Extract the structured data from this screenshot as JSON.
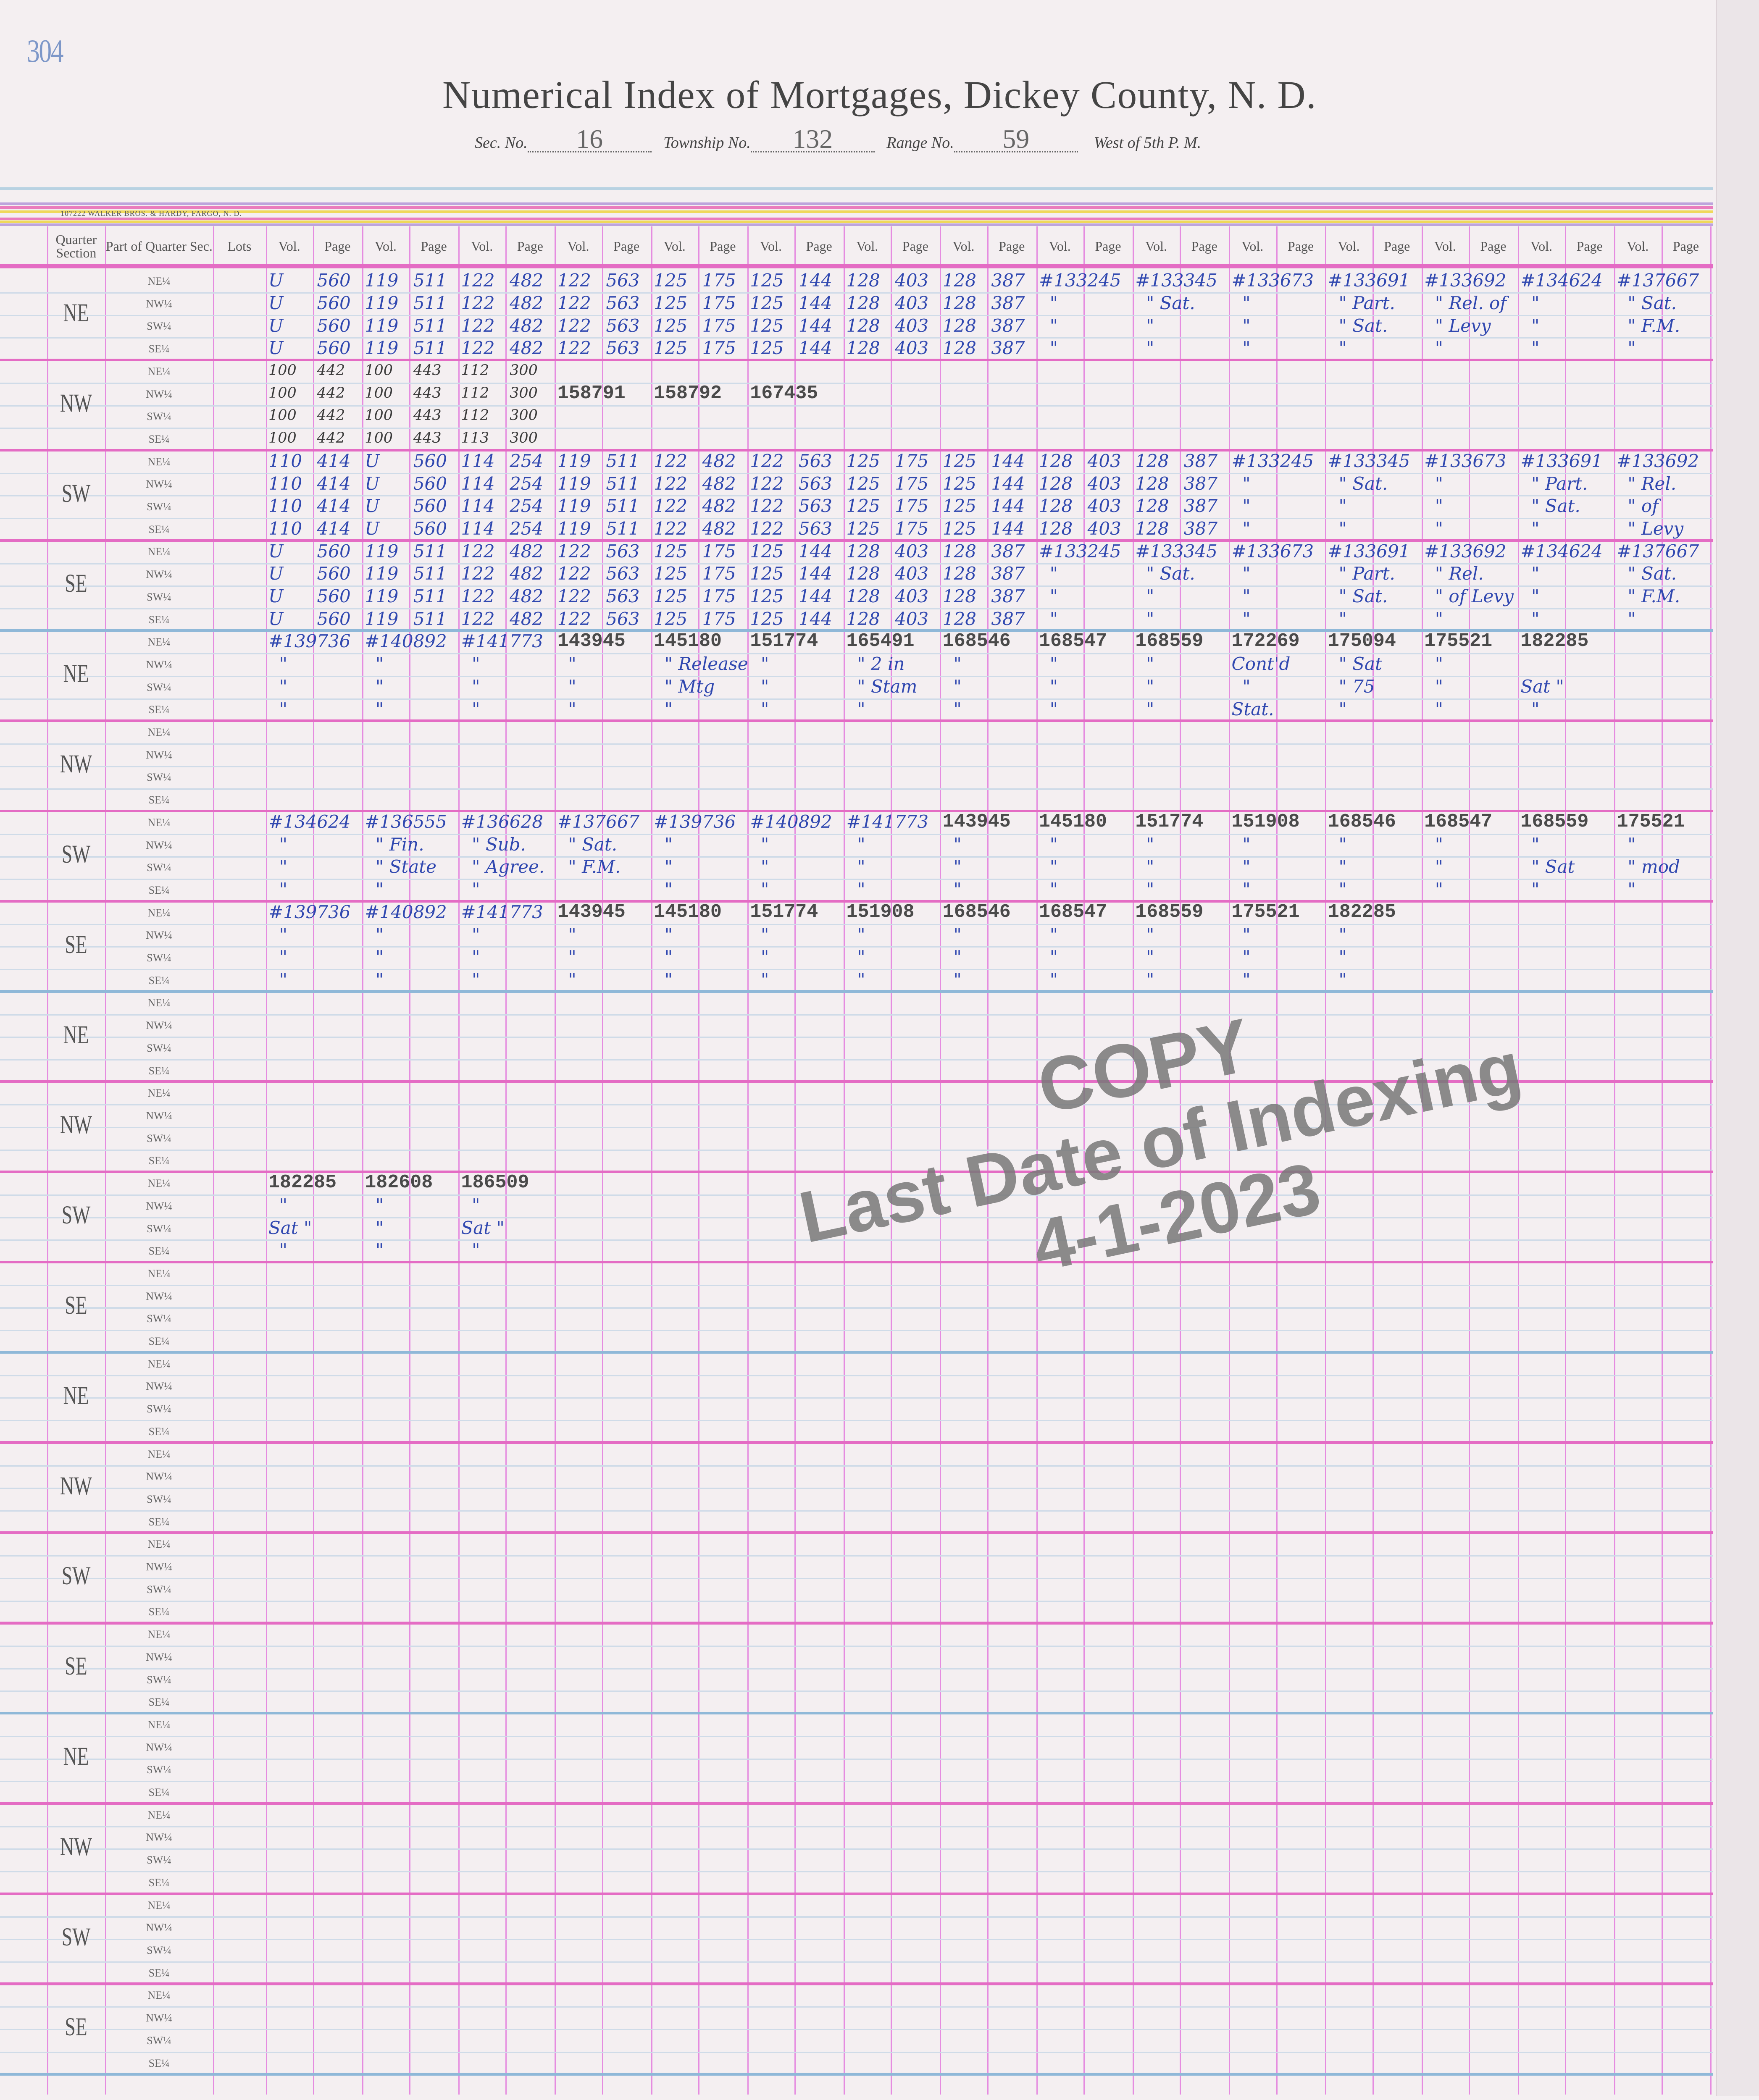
{
  "page_number": "304",
  "title": "Numerical Index of Mortgages, Dickey County, N. D.",
  "legal": {
    "sec_label": "Sec. No.",
    "sec": "16",
    "township_label": "Township No.",
    "township": "132",
    "range_label": "Range No.",
    "range": "59",
    "meridian": "West of 5th P. M."
  },
  "printer": "107222 WALKER BROS. & HARDY, FARGO, N. D.",
  "columns": {
    "quarter_section": "Quarter Section",
    "part": "Part of Quarter Sec.",
    "lots": "Lots",
    "vol": "Vol.",
    "page": "Page"
  },
  "parts": [
    "NE¼",
    "NW¼",
    "SW¼",
    "SE¼"
  ],
  "colors": {
    "grid_pink": "#e58ce0",
    "block_rule": "#e46cc4",
    "section_rule": "#8fb8d8",
    "row_rule": "#cfdbe8",
    "ink_blue": "#3048b0",
    "stamp_gray": "#787878"
  },
  "blocks": [
    {
      "quarter": "NE",
      "rows": [
        [
          [
            "U",
            "560"
          ],
          [
            "119",
            "511"
          ],
          [
            "122",
            "482"
          ],
          [
            "122",
            "563"
          ],
          [
            "125",
            "175"
          ],
          [
            "125",
            "144"
          ],
          [
            "128",
            "403"
          ],
          [
            "128",
            "387"
          ],
          "#133245",
          "#133345",
          "#133673",
          "#133691",
          "#133692",
          "#134624",
          "#137667"
        ],
        [
          [
            "U",
            "560"
          ],
          [
            "119",
            "511"
          ],
          [
            "122",
            "482"
          ],
          [
            "122",
            "563"
          ],
          [
            "125",
            "175"
          ],
          [
            "125",
            "144"
          ],
          [
            "128",
            "403"
          ],
          [
            "128",
            "387"
          ],
          "\"",
          "\" Sat.",
          "\"",
          "\" Part.",
          "\" Rel. of",
          "\"",
          "\" Sat."
        ],
        [
          [
            "U",
            "560"
          ],
          [
            "119",
            "511"
          ],
          [
            "122",
            "482"
          ],
          [
            "122",
            "563"
          ],
          [
            "125",
            "175"
          ],
          [
            "125",
            "144"
          ],
          [
            "128",
            "403"
          ],
          [
            "128",
            "387"
          ],
          "\"",
          "\"",
          "\"",
          "\" Sat.",
          "\" Levy",
          "\"",
          "\" F.M."
        ],
        [
          [
            "U",
            "560"
          ],
          [
            "119",
            "511"
          ],
          [
            "122",
            "482"
          ],
          [
            "122",
            "563"
          ],
          [
            "125",
            "175"
          ],
          [
            "125",
            "144"
          ],
          [
            "128",
            "403"
          ],
          [
            "128",
            "387"
          ],
          "\"",
          "\"",
          "\"",
          "\"",
          "\"",
          "\"",
          "\""
        ]
      ]
    },
    {
      "quarter": "NW",
      "ink": "pencil",
      "rows": [
        [
          [
            "100",
            "442"
          ],
          [
            "100",
            "443"
          ],
          [
            "112",
            "300"
          ],
          "",
          "",
          "",
          "",
          "",
          "",
          "",
          "",
          "",
          "",
          "",
          ""
        ],
        [
          [
            "100",
            "442"
          ],
          [
            "100",
            "443"
          ],
          [
            "112",
            "300"
          ],
          "158791",
          "158792",
          "167435",
          "",
          "",
          "",
          "",
          "",
          "",
          "",
          "",
          ""
        ],
        [
          [
            "100",
            "442"
          ],
          [
            "100",
            "443"
          ],
          [
            "112",
            "300"
          ],
          "",
          "",
          "",
          "",
          "",
          "",
          "",
          "",
          "",
          "",
          "",
          ""
        ],
        [
          [
            "100",
            "442"
          ],
          [
            "100",
            "443"
          ],
          [
            "113",
            "300"
          ],
          "",
          "",
          "",
          "",
          "",
          "",
          "",
          "",
          "",
          "",
          "",
          ""
        ]
      ]
    },
    {
      "quarter": "SW",
      "rows": [
        [
          [
            "110",
            "414"
          ],
          [
            "U",
            "560"
          ],
          [
            "114",
            "254"
          ],
          [
            "119",
            "511"
          ],
          [
            "122",
            "482"
          ],
          [
            "122",
            "563"
          ],
          [
            "125",
            "175"
          ],
          [
            "125",
            "144"
          ],
          [
            "128",
            "403"
          ],
          [
            "128",
            "387"
          ],
          "#133245",
          "#133345",
          "#133673",
          "#133691",
          "#133692"
        ],
        [
          [
            "110",
            "414"
          ],
          [
            "U",
            "560"
          ],
          [
            "114",
            "254"
          ],
          [
            "119",
            "511"
          ],
          [
            "122",
            "482"
          ],
          [
            "122",
            "563"
          ],
          [
            "125",
            "175"
          ],
          [
            "125",
            "144"
          ],
          [
            "128",
            "403"
          ],
          [
            "128",
            "387"
          ],
          "\"",
          "\" Sat.",
          "\"",
          "\" Part.",
          "\" Rel."
        ],
        [
          [
            "110",
            "414"
          ],
          [
            "U",
            "560"
          ],
          [
            "114",
            "254"
          ],
          [
            "119",
            "511"
          ],
          [
            "122",
            "482"
          ],
          [
            "122",
            "563"
          ],
          [
            "125",
            "175"
          ],
          [
            "125",
            "144"
          ],
          [
            "128",
            "403"
          ],
          [
            "128",
            "387"
          ],
          "\"",
          "\"",
          "\"",
          "\" Sat.",
          "\" of"
        ],
        [
          [
            "110",
            "414"
          ],
          [
            "U",
            "560"
          ],
          [
            "114",
            "254"
          ],
          [
            "119",
            "511"
          ],
          [
            "122",
            "482"
          ],
          [
            "122",
            "563"
          ],
          [
            "125",
            "175"
          ],
          [
            "125",
            "144"
          ],
          [
            "128",
            "403"
          ],
          [
            "128",
            "387"
          ],
          "\"",
          "\"",
          "\"",
          "\"",
          "\" Levy"
        ]
      ]
    },
    {
      "quarter": "SE",
      "rows": [
        [
          [
            "U",
            "560"
          ],
          [
            "119",
            "511"
          ],
          [
            "122",
            "482"
          ],
          [
            "122",
            "563"
          ],
          [
            "125",
            "175"
          ],
          [
            "125",
            "144"
          ],
          [
            "128",
            "403"
          ],
          [
            "128",
            "387"
          ],
          "#133245",
          "#133345",
          "#133673",
          "#133691",
          "#133692",
          "#134624",
          "#137667"
        ],
        [
          [
            "U",
            "560"
          ],
          [
            "119",
            "511"
          ],
          [
            "122",
            "482"
          ],
          [
            "122",
            "563"
          ],
          [
            "125",
            "175"
          ],
          [
            "125",
            "144"
          ],
          [
            "128",
            "403"
          ],
          [
            "128",
            "387"
          ],
          "\"",
          "\" Sat.",
          "\"",
          "\" Part.",
          "\" Rel.",
          "\"",
          "\" Sat."
        ],
        [
          [
            "U",
            "560"
          ],
          [
            "119",
            "511"
          ],
          [
            "122",
            "482"
          ],
          [
            "122",
            "563"
          ],
          [
            "125",
            "175"
          ],
          [
            "125",
            "144"
          ],
          [
            "128",
            "403"
          ],
          [
            "128",
            "387"
          ],
          "\"",
          "\"",
          "\"",
          "\" Sat.",
          "\" of Levy",
          "\"",
          "\" F.M."
        ],
        [
          [
            "U",
            "560"
          ],
          [
            "119",
            "511"
          ],
          [
            "122",
            "482"
          ],
          [
            "122",
            "563"
          ],
          [
            "125",
            "175"
          ],
          [
            "125",
            "144"
          ],
          [
            "128",
            "403"
          ],
          [
            "128",
            "387"
          ],
          "\"",
          "\"",
          "\"",
          "\"",
          "\"",
          "\"",
          "\""
        ]
      ]
    },
    {
      "quarter": "NE",
      "rows": [
        [
          "#139736",
          "#140892",
          "#141773",
          "143945",
          "145180",
          "151774",
          "165491",
          "168546",
          "168547",
          "168559",
          "172269",
          "175094",
          "175521",
          "182285",
          ""
        ],
        [
          "\"",
          "\"",
          "\"",
          "\"",
          "\" Release",
          "\"",
          "\" 2 in",
          "\"",
          "\"",
          "\"",
          "Cont'd",
          "\" Sat",
          "\"",
          "",
          ""
        ],
        [
          "\"",
          "\"",
          "\"",
          "\"",
          "\" Mtg",
          "\"",
          "\" Stam",
          "\"",
          "\"",
          "\"",
          "\"",
          "\" 75",
          "\"",
          "Sat \"",
          ""
        ],
        [
          "\"",
          "\"",
          "\"",
          "\"",
          "\"",
          "\"",
          "\"",
          "\"",
          "\"",
          "\"",
          "Stat.",
          "\"",
          "\"",
          "\"",
          ""
        ]
      ]
    },
    {
      "quarter": "NW",
      "rows": []
    },
    {
      "quarter": "SW",
      "rows": [
        [
          "#134624",
          "#136555",
          "#136628",
          "#137667",
          "#139736",
          "#140892",
          "#141773",
          "143945",
          "145180",
          "151774",
          "151908",
          "168546",
          "168547",
          "168559",
          "175521"
        ],
        [
          "\"",
          "\" Fin.",
          "\" Sub.",
          "\" Sat.",
          "\"",
          "\"",
          "\"",
          "\"",
          "\"",
          "\"",
          "\"",
          "\"",
          "\"",
          "\"",
          "\""
        ],
        [
          "\"",
          "\" State",
          "\" Agree.",
          "\" F.M.",
          "\"",
          "\"",
          "\"",
          "\"",
          "\"",
          "\"",
          "\"",
          "\"",
          "\"",
          "\" Sat",
          "\" mod"
        ],
        [
          "\"",
          "\"",
          "\"",
          "",
          "\"",
          "\"",
          "\"",
          "\"",
          "\"",
          "\"",
          "\"",
          "\"",
          "\"",
          "\"",
          "\""
        ]
      ]
    },
    {
      "quarter": "SE",
      "rows": [
        [
          "#139736",
          "#140892",
          "#141773",
          "143945",
          "145180",
          "151774",
          "151908",
          "168546",
          "168547",
          "168559",
          "175521",
          "182285",
          "",
          "",
          ""
        ],
        [
          "\"",
          "\"",
          "\"",
          "\"",
          "\"",
          "\"",
          "\"",
          "\"",
          "\"",
          "\"",
          "\"",
          "\"",
          "",
          "",
          ""
        ],
        [
          "\"",
          "\"",
          "\"",
          "\"",
          "\"",
          "\"",
          "\"",
          "\"",
          "\"",
          "\"",
          "\"",
          "\"",
          "",
          "",
          ""
        ],
        [
          "\"",
          "\"",
          "\"",
          "\"",
          "\"",
          "\"",
          "\"",
          "\"",
          "\"",
          "\"",
          "\"",
          "\"",
          "",
          "",
          ""
        ]
      ]
    },
    {
      "quarter": "NE",
      "rows": []
    },
    {
      "quarter": "NW",
      "rows": []
    },
    {
      "quarter": "SW",
      "rows": [
        [
          "182285",
          "182608",
          "186509",
          "",
          "",
          "",
          "",
          "",
          "",
          "",
          "",
          "",
          "",
          "",
          ""
        ],
        [
          "\"",
          "\"",
          "\"",
          "",
          "",
          "",
          "",
          "",
          "",
          "",
          "",
          "",
          "",
          "",
          ""
        ],
        [
          "Sat \"",
          "\"",
          "Sat \"",
          "",
          "",
          "",
          "",
          "",
          "",
          "",
          "",
          "",
          "",
          "",
          ""
        ],
        [
          "\"",
          "\"",
          "\"",
          "",
          "",
          "",
          "",
          "",
          "",
          "",
          "",
          "",
          "",
          "",
          ""
        ]
      ]
    },
    {
      "quarter": "SE",
      "rows": []
    },
    {
      "quarter": "NE",
      "rows": []
    },
    {
      "quarter": "NW",
      "rows": []
    },
    {
      "quarter": "SW",
      "rows": []
    },
    {
      "quarter": "SE",
      "rows": []
    },
    {
      "quarter": "NE",
      "rows": []
    },
    {
      "quarter": "NW",
      "rows": []
    },
    {
      "quarter": "SW",
      "rows": []
    },
    {
      "quarter": "SE",
      "rows": []
    }
  ],
  "stamp": {
    "line1": "COPY",
    "line2": "Last Date of Indexing",
    "line3": "4-1-2023"
  }
}
